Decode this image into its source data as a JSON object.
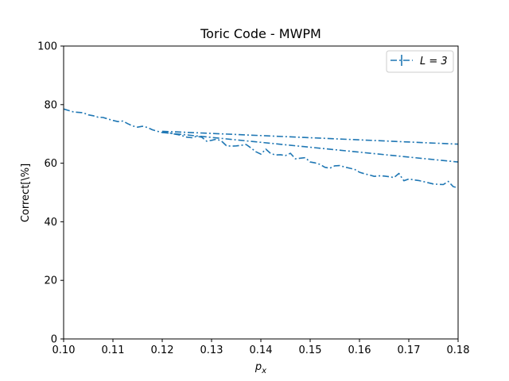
{
  "chart_data": {
    "type": "line",
    "title": "Toric Code - MWPM",
    "xlabel": "p_x",
    "ylabel": "Correct[\\%]",
    "xlim": [
      0.1,
      0.18
    ],
    "ylim": [
      0,
      100
    ],
    "xticks": [
      "0.10",
      "0.11",
      "0.12",
      "0.13",
      "0.14",
      "0.15",
      "0.16",
      "0.17",
      "0.18"
    ],
    "yticks": [
      "0",
      "20",
      "40",
      "60",
      "80",
      "100"
    ],
    "grid": false,
    "legend": {
      "position": "top-right",
      "entries": [
        "L = 3"
      ]
    },
    "line_style": "dash-dot",
    "color": "#1f77b4",
    "series": [
      {
        "name": "L = 3",
        "x": [
          0.1,
          0.102,
          0.104,
          0.105,
          0.106,
          0.107,
          0.108,
          0.109,
          0.11,
          0.111,
          0.112,
          0.113,
          0.114,
          0.115,
          0.116,
          0.117,
          0.118,
          0.119,
          0.12,
          0.121,
          0.122,
          0.123,
          0.124,
          0.125,
          0.126,
          0.127,
          0.128,
          0.129,
          0.13,
          0.131,
          0.132,
          0.133,
          0.134,
          0.135,
          0.136,
          0.137,
          0.138,
          0.139,
          0.14,
          0.141,
          0.142,
          0.143,
          0.144,
          0.145,
          0.146,
          0.147,
          0.148,
          0.149,
          0.15,
          0.151,
          0.152,
          0.153,
          0.154,
          0.155,
          0.156,
          0.157,
          0.158,
          0.159,
          0.16,
          0.161,
          0.162,
          0.163,
          0.164,
          0.165,
          0.166,
          0.167,
          0.168,
          0.169,
          0.17,
          0.171,
          0.172,
          0.173,
          0.174,
          0.175,
          0.176,
          0.177,
          0.178,
          0.179,
          0.18
        ],
        "y": [
          78.5,
          77.5,
          77.2,
          76.5,
          76.2,
          75.7,
          75.6,
          75.1,
          74.6,
          74.2,
          74.4,
          73.5,
          72.7,
          72.3,
          72.6,
          72.2,
          71.4,
          70.9,
          70.5,
          70.6,
          70.1,
          69.8,
          69.4,
          68.9,
          68.7,
          69.2,
          68.9,
          67.5,
          67.8,
          68.2,
          67.6,
          66.0,
          65.8,
          65.9,
          66.1,
          66.4,
          65.2,
          63.9,
          63.1,
          64.8,
          63.3,
          62.8,
          62.9,
          62.6,
          63.4,
          61.5,
          61.7,
          61.9,
          60.4,
          60.1,
          59.6,
          58.6,
          58.3,
          59.1,
          59.2,
          58.7,
          58.3,
          57.9,
          56.9,
          56.4,
          56.0,
          55.5,
          55.7,
          55.6,
          55.4,
          55.1,
          56.5,
          54.0,
          54.6,
          54.3,
          54.1,
          53.7,
          53.3,
          52.9,
          52.8,
          52.7,
          53.8,
          52.0,
          51.6
        ]
      },
      {
        "name": "",
        "x": [
          0.12,
          0.18
        ],
        "y": [
          70.5,
          60.4
        ]
      },
      {
        "name": "",
        "x": [
          0.12,
          0.18
        ],
        "y": [
          70.9,
          66.5
        ]
      }
    ]
  }
}
